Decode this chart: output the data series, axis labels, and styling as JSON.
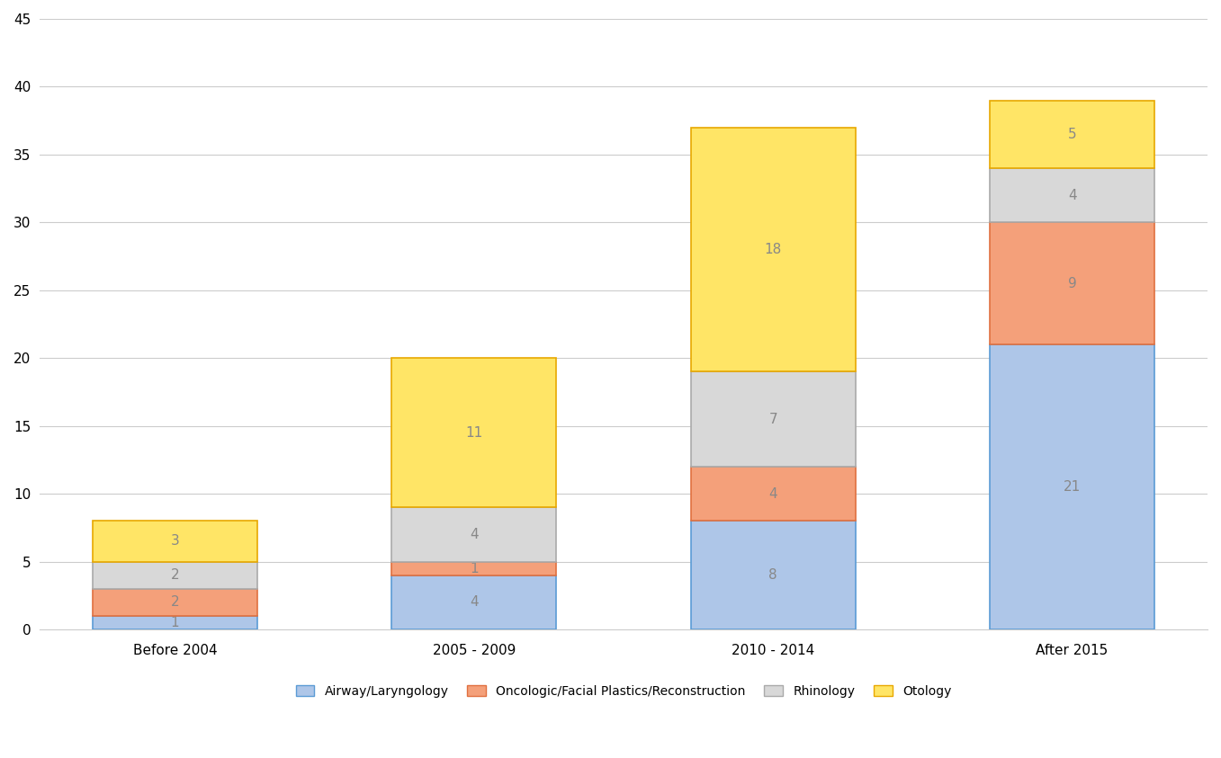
{
  "categories": [
    "Before 2004",
    "2005 - 2009",
    "2010 - 2014",
    "After 2015"
  ],
  "series": {
    "Airway/Laryngology": [
      1,
      4,
      8,
      21
    ],
    "Oncologic/Facial Plastics/Reconstruction": [
      2,
      1,
      4,
      9
    ],
    "Rhinology": [
      2,
      4,
      7,
      4
    ],
    "Otology": [
      3,
      11,
      18,
      5
    ]
  },
  "colors": {
    "Airway/Laryngology": "#aec6e8",
    "Oncologic/Facial Plastics/Reconstruction": "#f4a07a",
    "Rhinology": "#d8d8d8",
    "Otology": "#ffe566"
  },
  "edge_colors": {
    "Airway/Laryngology": "#5b9bd5",
    "Oncologic/Facial Plastics/Reconstruction": "#e07040",
    "Rhinology": "#aaaaaa",
    "Otology": "#e8a800"
  },
  "ylim": [
    0,
    45
  ],
  "yticks": [
    0,
    5,
    10,
    15,
    20,
    25,
    30,
    35,
    40,
    45
  ],
  "bar_width": 0.55,
  "background_color": "#ffffff",
  "grid_color": "#cccccc",
  "tick_fontsize": 11,
  "legend_fontsize": 10,
  "value_fontsize": 11,
  "value_color": "#888888"
}
